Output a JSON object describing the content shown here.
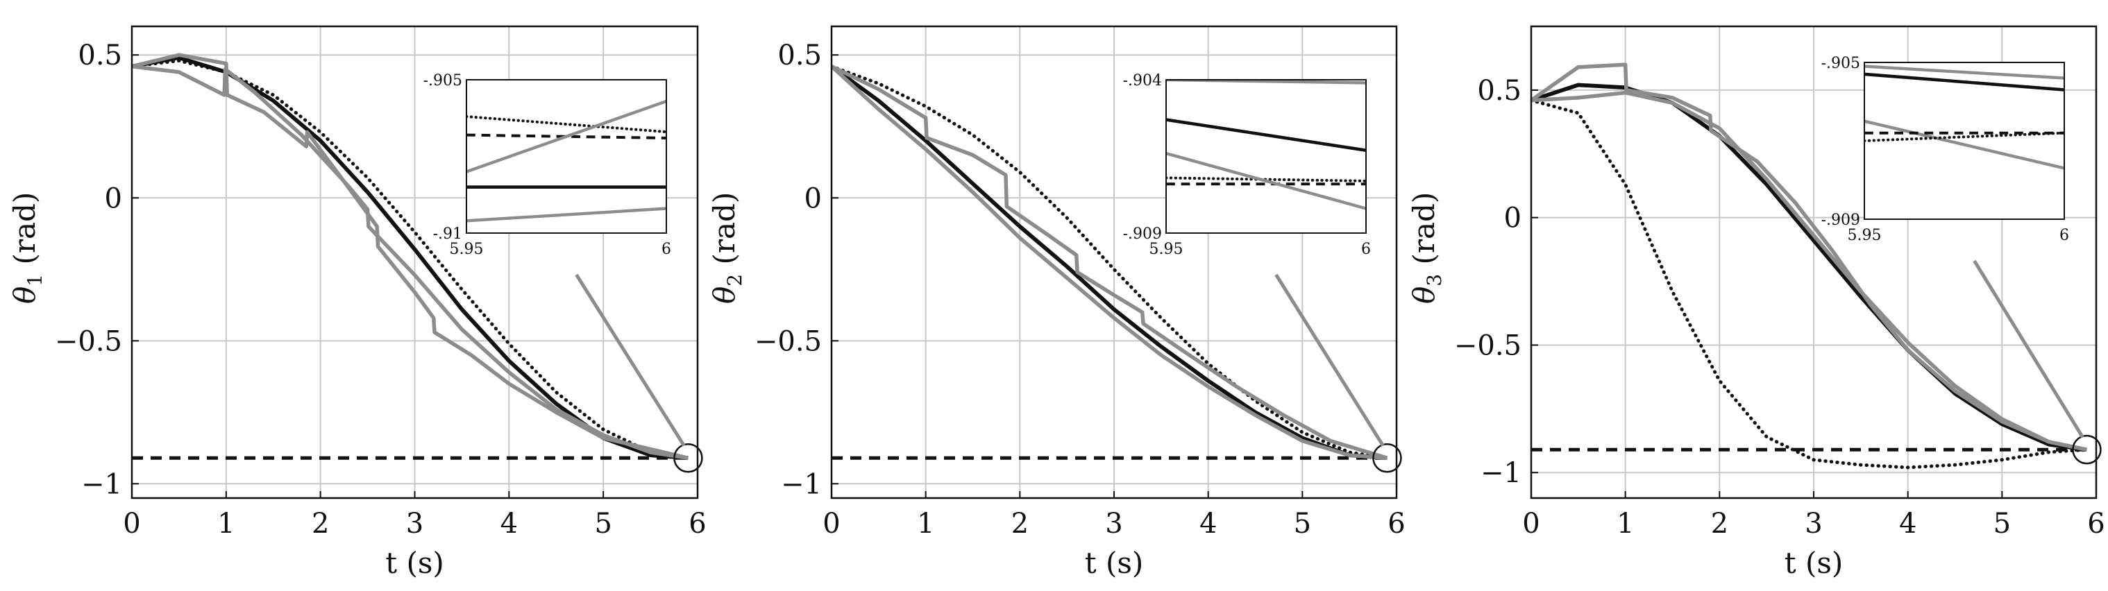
{
  "colors": {
    "reference": "#111111",
    "gray": "#8c8c8c",
    "grid": "#c8c8c8",
    "frame": "#111111"
  },
  "chart_data": [
    {
      "type": "line",
      "xlabel": "t (s)",
      "ylabel_symbol": "θ",
      "ylabel_sub": "1",
      "ylabel_unit": " (rad)",
      "xlim": [
        0,
        6
      ],
      "ylim": [
        -1.05,
        0.6
      ],
      "xticks": [
        0,
        1,
        2,
        3,
        4,
        5,
        6
      ],
      "yticks": [
        0.5,
        0,
        -0.5,
        -1
      ],
      "ytick_labels": [
        "0.5",
        "0",
        "−0.5",
        "−1"
      ],
      "grid": true,
      "series": [
        {
          "style": "solid-black",
          "x": [
            0,
            0.5,
            1,
            1.5,
            2,
            2.5,
            3,
            3.5,
            4,
            4.5,
            5,
            5.5,
            5.9
          ],
          "y": [
            0.46,
            0.49,
            0.44,
            0.34,
            0.2,
            0.02,
            -0.18,
            -0.39,
            -0.57,
            -0.72,
            -0.84,
            -0.9,
            -0.91
          ]
        },
        {
          "style": "dotted-black",
          "x": [
            0,
            0.5,
            1,
            1.5,
            2,
            2.5,
            3,
            3.5,
            4,
            4.5,
            5,
            5.5,
            5.9
          ],
          "y": [
            0.46,
            0.48,
            0.44,
            0.36,
            0.23,
            0.07,
            -0.12,
            -0.32,
            -0.51,
            -0.68,
            -0.81,
            -0.89,
            -0.91
          ]
        },
        {
          "style": "dashed-black",
          "x": [
            0,
            5.9
          ],
          "y": [
            -0.91,
            -0.91
          ]
        },
        {
          "style": "solid-gray",
          "x": [
            0,
            0.5,
            1,
            1.01,
            1.4,
            1.85,
            1.86,
            2.2,
            2.6,
            2.61,
            3.0,
            3.2,
            3.21,
            3.6,
            4.0,
            4.5,
            5.0,
            5.9
          ],
          "y": [
            0.46,
            0.5,
            0.47,
            0.36,
            0.3,
            0.18,
            0.23,
            0.08,
            -0.1,
            -0.17,
            -0.33,
            -0.42,
            -0.47,
            -0.55,
            -0.65,
            -0.75,
            -0.84,
            -0.91
          ]
        },
        {
          "style": "solid-gray",
          "x": [
            0,
            0.5,
            0.98,
            0.99,
            1.3,
            1.8,
            2.3,
            2.5,
            2.51,
            3.0,
            3.5,
            4.0,
            4.5,
            5.0,
            5.5,
            5.9
          ],
          "y": [
            0.46,
            0.44,
            0.36,
            0.45,
            0.37,
            0.22,
            0.04,
            -0.04,
            -0.1,
            -0.27,
            -0.46,
            -0.61,
            -0.74,
            -0.83,
            -0.89,
            -0.91
          ]
        }
      ],
      "end_marker": {
        "x": 5.9,
        "y": -0.91
      },
      "inset": {
        "xlim": [
          5.95,
          6
        ],
        "ylim": [
          -0.91,
          -0.905
        ],
        "xtick_labels": [
          "5.95",
          "6"
        ],
        "ytick_labels": [
          "-.905",
          "-.91"
        ],
        "series": [
          {
            "style": "dotted-black",
            "x": [
              5.95,
              6
            ],
            "y": [
              -0.9062,
              -0.9067
            ]
          },
          {
            "style": "dashed-black",
            "x": [
              5.95,
              6
            ],
            "y": [
              -0.9068,
              -0.9069
            ]
          },
          {
            "style": "solid-black",
            "x": [
              5.95,
              6
            ],
            "y": [
              -0.9085,
              -0.9085
            ]
          },
          {
            "style": "solid-gray",
            "x": [
              5.95,
              6
            ],
            "y": [
              -0.908,
              -0.9057
            ]
          },
          {
            "style": "solid-gray",
            "x": [
              5.95,
              6
            ],
            "y": [
              -0.9096,
              -0.9092
            ]
          }
        ]
      }
    },
    {
      "type": "line",
      "xlabel": "t (s)",
      "ylabel_symbol": "θ",
      "ylabel_sub": "2",
      "ylabel_unit": " (rad)",
      "xlim": [
        0,
        6
      ],
      "ylim": [
        -1.05,
        0.6
      ],
      "xticks": [
        0,
        1,
        2,
        3,
        4,
        5,
        6
      ],
      "yticks": [
        0.5,
        0,
        -0.5,
        -1
      ],
      "ytick_labels": [
        "0.5",
        "0",
        "−0.5",
        "−1"
      ],
      "grid": true,
      "series": [
        {
          "style": "solid-black",
          "x": [
            0,
            0.5,
            1,
            1.5,
            2,
            2.5,
            3,
            3.5,
            4,
            4.5,
            5,
            5.5,
            5.9
          ],
          "y": [
            0.46,
            0.34,
            0.2,
            0.05,
            -0.1,
            -0.24,
            -0.39,
            -0.52,
            -0.64,
            -0.75,
            -0.84,
            -0.9,
            -0.91
          ]
        },
        {
          "style": "dotted-black",
          "x": [
            0,
            0.5,
            1,
            1.5,
            2,
            2.5,
            3,
            3.5,
            4,
            4.5,
            5,
            5.5,
            5.9
          ],
          "y": [
            0.46,
            0.4,
            0.32,
            0.22,
            0.09,
            -0.07,
            -0.25,
            -0.42,
            -0.58,
            -0.71,
            -0.82,
            -0.89,
            -0.91
          ]
        },
        {
          "style": "dashed-black",
          "x": [
            0,
            5.9
          ],
          "y": [
            -0.91,
            -0.91
          ]
        },
        {
          "style": "solid-gray",
          "x": [
            0,
            0.5,
            1.0,
            1.01,
            1.5,
            1.85,
            1.86,
            2.3,
            2.6,
            2.61,
            3.0,
            3.3,
            3.31,
            3.8,
            4.3,
            4.8,
            5.3,
            5.9
          ],
          "y": [
            0.46,
            0.38,
            0.28,
            0.21,
            0.15,
            0.08,
            -0.03,
            -0.13,
            -0.2,
            -0.26,
            -0.34,
            -0.4,
            -0.44,
            -0.55,
            -0.66,
            -0.76,
            -0.85,
            -0.91
          ]
        },
        {
          "style": "solid-gray",
          "x": [
            0,
            0.5,
            1.0,
            1.5,
            2.0,
            2.5,
            3.0,
            3.5,
            4.0,
            4.5,
            5.0,
            5.5,
            5.9
          ],
          "y": [
            0.46,
            0.31,
            0.17,
            0.02,
            -0.14,
            -0.28,
            -0.42,
            -0.55,
            -0.66,
            -0.76,
            -0.85,
            -0.9,
            -0.91
          ]
        }
      ],
      "end_marker": {
        "x": 5.9,
        "y": -0.91
      },
      "inset": {
        "xlim": [
          5.95,
          6
        ],
        "ylim": [
          -0.909,
          -0.904
        ],
        "xtick_labels": [
          "5.95",
          "6"
        ],
        "ytick_labels": [
          "-.904",
          "-.909"
        ],
        "series": [
          {
            "style": "solid-gray",
            "x": [
              5.95,
              6
            ],
            "y": [
              -0.904,
              -0.9041
            ]
          },
          {
            "style": "solid-black",
            "x": [
              5.95,
              6
            ],
            "y": [
              -0.9053,
              -0.9063
            ]
          },
          {
            "style": "dotted-black",
            "x": [
              5.95,
              6
            ],
            "y": [
              -0.9072,
              -0.9073
            ]
          },
          {
            "style": "dashed-black",
            "x": [
              5.95,
              6
            ],
            "y": [
              -0.9074,
              -0.9074
            ]
          },
          {
            "style": "solid-gray",
            "x": [
              5.95,
              6
            ],
            "y": [
              -0.9064,
              -0.9082
            ]
          }
        ]
      }
    },
    {
      "type": "line",
      "xlabel": "t (s)",
      "ylabel_symbol": "θ",
      "ylabel_sub": "3",
      "ylabel_unit": " (rad)",
      "xlim": [
        0,
        6
      ],
      "ylim": [
        -1.1,
        0.75
      ],
      "xticks": [
        0,
        1,
        2,
        3,
        4,
        5,
        6
      ],
      "yticks": [
        0.5,
        0,
        -0.5,
        -1
      ],
      "ytick_labels": [
        "0.5",
        "0",
        "−0.5",
        "−1"
      ],
      "grid": true,
      "series": [
        {
          "style": "solid-black",
          "x": [
            0,
            0.5,
            1,
            1.5,
            2,
            2.5,
            3,
            3.5,
            4,
            4.5,
            5,
            5.5,
            5.9
          ],
          "y": [
            0.46,
            0.52,
            0.51,
            0.45,
            0.32,
            0.13,
            -0.09,
            -0.31,
            -0.52,
            -0.69,
            -0.81,
            -0.89,
            -0.91
          ]
        },
        {
          "style": "dotted-black",
          "x": [
            0,
            0.5,
            1,
            1.5,
            2,
            2.5,
            3,
            3.5,
            4,
            4.5,
            5,
            5.5,
            5.9
          ],
          "y": [
            0.46,
            0.41,
            0.13,
            -0.29,
            -0.64,
            -0.86,
            -0.95,
            -0.97,
            -0.98,
            -0.97,
            -0.95,
            -0.92,
            -0.91
          ]
        },
        {
          "style": "dashed-black",
          "x": [
            0,
            5.9
          ],
          "y": [
            -0.91,
            -0.91
          ]
        },
        {
          "style": "solid-gray",
          "x": [
            0,
            0.5,
            1.0,
            1.01,
            1.5,
            1.9,
            1.91,
            2.4,
            2.8,
            3.2,
            3.6,
            4.0,
            4.5,
            5.0,
            5.5,
            5.9
          ],
          "y": [
            0.46,
            0.59,
            0.6,
            0.5,
            0.47,
            0.4,
            0.34,
            0.22,
            0.06,
            -0.13,
            -0.34,
            -0.52,
            -0.68,
            -0.8,
            -0.88,
            -0.91
          ]
        },
        {
          "style": "solid-gray",
          "x": [
            0,
            0.5,
            1,
            1.5,
            2,
            2.5,
            3,
            3.5,
            4,
            4.5,
            5,
            5.5,
            5.9
          ],
          "y": [
            0.46,
            0.47,
            0.49,
            0.45,
            0.35,
            0.15,
            -0.07,
            -0.29,
            -0.49,
            -0.66,
            -0.79,
            -0.88,
            -0.91
          ]
        }
      ],
      "end_marker": {
        "x": 5.9,
        "y": -0.91
      },
      "inset": {
        "xlim": [
          5.95,
          6
        ],
        "ylim": [
          -0.909,
          -0.905
        ],
        "xtick_labels": [
          "5.95",
          "6"
        ],
        "ytick_labels": [
          "-.905",
          "-.909"
        ],
        "series": [
          {
            "style": "solid-gray",
            "x": [
              5.95,
              6
            ],
            "y": [
              -0.9051,
              -0.9054
            ]
          },
          {
            "style": "solid-black",
            "x": [
              5.95,
              6
            ],
            "y": [
              -0.9053,
              -0.9057
            ]
          },
          {
            "style": "solid-gray",
            "x": [
              5.95,
              6
            ],
            "y": [
              -0.9065,
              -0.9077
            ]
          },
          {
            "style": "dashed-black",
            "x": [
              5.95,
              6
            ],
            "y": [
              -0.9068,
              -0.9068
            ]
          },
          {
            "style": "dotted-black",
            "x": [
              5.95,
              6
            ],
            "y": [
              -0.907,
              -0.9068
            ]
          }
        ]
      }
    }
  ]
}
